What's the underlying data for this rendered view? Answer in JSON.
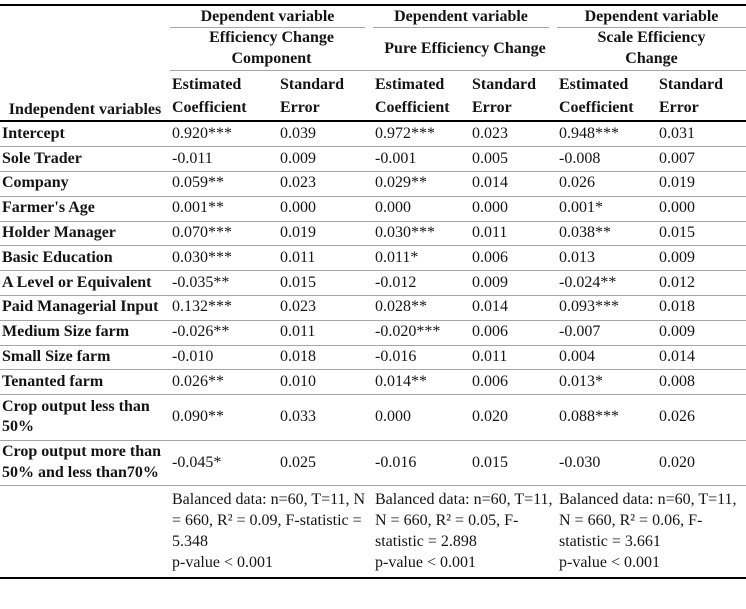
{
  "table": {
    "corner_header": "Independent variables",
    "col_headers": {
      "estimated": "Estimated Coefficient",
      "standard": "Standard Error"
    },
    "groups": [
      {
        "dependent_label": "Dependent variable",
        "title": "Efficiency Change Component",
        "footer_stats": "Balanced data: n=60, T=11, N = 660, R² = 0.09, F-statistic = 5.348",
        "footer_pvalue": "p-value < 0.001"
      },
      {
        "dependent_label": "Dependent variable",
        "title": "Pure Efficiency Change",
        "footer_stats": "Balanced data: n=60, T=11, N = 660, R² = 0.05, F-statistic = 2.898",
        "footer_pvalue": "p-value < 0.001"
      },
      {
        "dependent_label": "Dependent variable",
        "title": "Scale Efficiency Change",
        "footer_stats": "Balanced data: n=60, T=11, N = 660, R² = 0.06, F-statistic = 3.661",
        "footer_pvalue": "p-value < 0.001"
      }
    ],
    "rows": [
      {
        "label": "Intercept",
        "values": [
          "0.920***",
          "0.039",
          "0.972***",
          "0.023",
          "0.948***",
          "0.031"
        ]
      },
      {
        "label": "Sole Trader",
        "values": [
          "-0.011",
          "0.009",
          "-0.001",
          "0.005",
          "-0.008",
          "0.007"
        ]
      },
      {
        "label": "Company",
        "values": [
          "0.059**",
          "0.023",
          "0.029**",
          "0.014",
          "0.026",
          "0.019"
        ]
      },
      {
        "label": "Farmer's Age",
        "values": [
          "0.001**",
          "0.000",
          "0.000",
          "0.000",
          "0.001*",
          "0.000"
        ]
      },
      {
        "label": "Holder Manager",
        "values": [
          "0.070***",
          "0.019",
          "0.030***",
          "0.011",
          "0.038**",
          "0.015"
        ]
      },
      {
        "label": "Basic Education",
        "values": [
          "0.030***",
          "0.011",
          "0.011*",
          "0.006",
          "0.013",
          "0.009"
        ]
      },
      {
        "label": "A Level or Equivalent",
        "values": [
          "-0.035**",
          "0.015",
          "-0.012",
          "0.009",
          "-0.024**",
          "0.012"
        ]
      },
      {
        "label": "Paid Managerial Input",
        "values": [
          "0.132***",
          "0.023",
          "0.028**",
          "0.014",
          "0.093***",
          "0.018"
        ]
      },
      {
        "label": "Medium Size farm",
        "values": [
          "-0.026**",
          "0.011",
          "-0.020***",
          "0.006",
          "-0.007",
          "0.009"
        ]
      },
      {
        "label": "Small Size farm",
        "values": [
          "-0.010",
          "0.018",
          "-0.016",
          "0.011",
          "0.004",
          "0.014"
        ]
      },
      {
        "label": "Tenanted farm",
        "values": [
          "0.026**",
          "0.010",
          "0.014**",
          "0.006",
          "0.013*",
          "0.008"
        ]
      },
      {
        "label": "Crop output less than 50%",
        "values": [
          "0.090**",
          "0.033",
          "0.000",
          "0.020",
          "0.088***",
          "0.026"
        ]
      },
      {
        "label": "Crop output more than 50% and less than70%",
        "values": [
          "-0.045*",
          "0.025",
          "-0.016",
          "0.015",
          "-0.030",
          "0.020"
        ]
      }
    ],
    "colors": {
      "heavy_rule": "#000000",
      "light_rule": "#a6a6a6",
      "text": "#141414"
    }
  }
}
